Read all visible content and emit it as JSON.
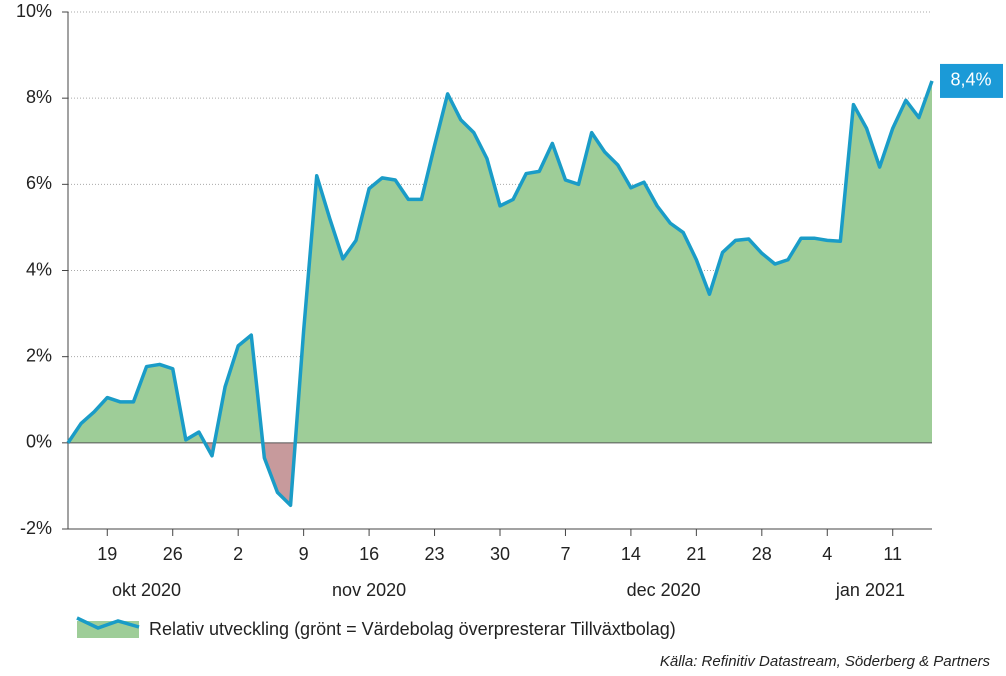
{
  "chart_data": {
    "type": "area",
    "categories": [
      null,
      null,
      null,
      "19",
      null,
      null,
      null,
      null,
      "26",
      null,
      null,
      null,
      null,
      "2",
      null,
      null,
      null,
      null,
      "9",
      null,
      null,
      null,
      null,
      "16",
      null,
      null,
      null,
      null,
      "23",
      null,
      null,
      null,
      null,
      "30",
      null,
      null,
      null,
      null,
      "7",
      null,
      null,
      null,
      null,
      "14",
      null,
      null,
      null,
      null,
      "21",
      null,
      null,
      null,
      null,
      "28",
      null,
      null,
      null,
      null,
      "4",
      null,
      null,
      null,
      null,
      "11",
      null,
      null,
      null
    ],
    "month_labels": [
      "okt 2020",
      "nov 2020",
      "dec 2020",
      "jan 2021"
    ],
    "series": [
      {
        "name": "Relativ utveckling (grönt = Värdebolag överpresterar Tillväxtbolag)",
        "color": "#1a9cc7",
        "positive_color": "#9ecd98",
        "negative_color": "#c79a9c",
        "values": [
          0.0,
          0.45,
          0.72,
          1.05,
          0.95,
          0.95,
          1.77,
          1.82,
          1.72,
          0.07,
          0.25,
          -0.3,
          1.3,
          2.25,
          2.5,
          -0.35,
          -1.15,
          -1.45,
          2.6,
          6.2,
          5.2,
          4.27,
          4.7,
          5.9,
          6.15,
          6.1,
          5.65,
          5.65,
          6.9,
          8.1,
          7.5,
          7.2,
          6.6,
          5.5,
          5.65,
          6.25,
          6.3,
          6.95,
          6.1,
          6.0,
          7.2,
          6.75,
          6.45,
          5.92,
          6.05,
          5.5,
          5.1,
          4.88,
          4.25,
          3.45,
          4.42,
          4.7,
          4.73,
          4.4,
          4.15,
          4.25,
          4.75,
          4.75,
          4.7,
          4.68,
          7.85,
          7.3,
          6.4,
          7.3,
          7.95,
          7.55,
          8.4
        ],
        "value_labels": [
          null,
          null,
          null,
          null,
          null,
          null,
          null,
          null,
          null,
          null,
          null,
          null,
          null,
          null,
          null,
          null,
          null,
          null,
          null,
          null,
          null,
          null,
          null,
          null,
          null,
          null,
          null,
          null,
          null,
          null,
          null,
          null,
          null,
          null,
          null,
          null,
          null,
          null,
          null,
          null,
          null,
          null,
          null,
          null,
          null,
          null,
          null,
          null,
          null,
          null,
          null,
          null,
          null,
          null,
          null,
          null,
          null,
          null,
          null,
          null,
          null,
          null,
          null,
          null,
          null,
          null,
          "8,4%"
        ],
        "label_color": "#1b9ad7"
      }
    ],
    "ylim": [
      -2,
      10
    ],
    "yticks": [
      {
        "value": -2,
        "label": "-2%"
      },
      {
        "value": 0,
        "label": "0%"
      },
      {
        "value": 2,
        "label": "2%"
      },
      {
        "value": 4,
        "label": "4%"
      },
      {
        "value": 6,
        "label": "6%"
      },
      {
        "value": 8,
        "label": "8%"
      },
      {
        "value": 10,
        "label": "10%"
      }
    ],
    "grid": true,
    "source": "Källa: Refinitiv Datastream, Söderberg & Partners"
  }
}
